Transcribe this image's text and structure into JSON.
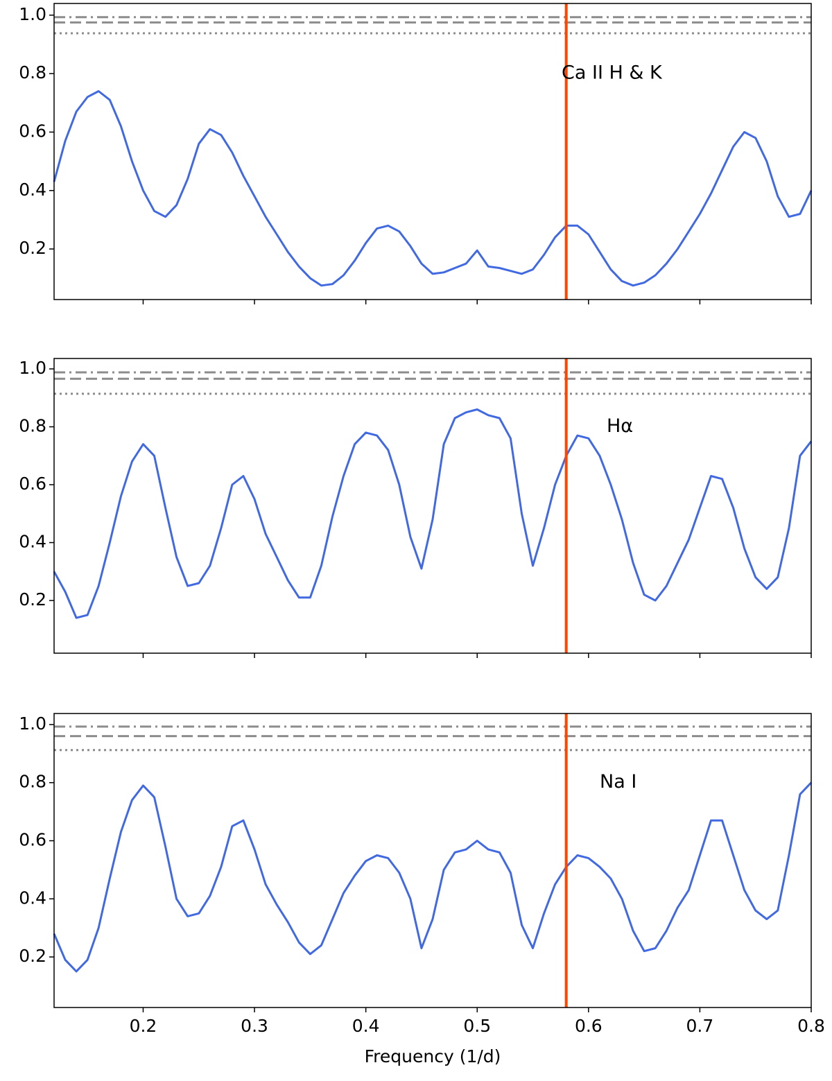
{
  "chart_data": [
    {
      "type": "line",
      "annotation": "Ca II H & K",
      "x": [
        0.12,
        0.13,
        0.14,
        0.15,
        0.16,
        0.17,
        0.18,
        0.19,
        0.2,
        0.21,
        0.22,
        0.23,
        0.24,
        0.25,
        0.26,
        0.27,
        0.28,
        0.29,
        0.3,
        0.31,
        0.32,
        0.33,
        0.34,
        0.35,
        0.36,
        0.37,
        0.38,
        0.39,
        0.4,
        0.41,
        0.42,
        0.43,
        0.44,
        0.45,
        0.46,
        0.47,
        0.48,
        0.49,
        0.5,
        0.51,
        0.52,
        0.53,
        0.54,
        0.55,
        0.56,
        0.57,
        0.58,
        0.59,
        0.6,
        0.61,
        0.62,
        0.63,
        0.64,
        0.65,
        0.66,
        0.67,
        0.68,
        0.69,
        0.7,
        0.71,
        0.72,
        0.73,
        0.74,
        0.75,
        0.76,
        0.77,
        0.78,
        0.79,
        0.8
      ],
      "values": [
        0.43,
        0.57,
        0.67,
        0.72,
        0.74,
        0.71,
        0.62,
        0.5,
        0.4,
        0.33,
        0.31,
        0.35,
        0.44,
        0.56,
        0.61,
        0.59,
        0.53,
        0.45,
        0.38,
        0.31,
        0.25,
        0.19,
        0.14,
        0.1,
        0.075,
        0.08,
        0.11,
        0.16,
        0.22,
        0.27,
        0.28,
        0.26,
        0.21,
        0.15,
        0.115,
        0.12,
        0.135,
        0.15,
        0.195,
        0.14,
        0.135,
        0.125,
        0.115,
        0.13,
        0.18,
        0.24,
        0.28,
        0.28,
        0.25,
        0.19,
        0.13,
        0.09,
        0.075,
        0.085,
        0.11,
        0.15,
        0.2,
        0.26,
        0.32,
        0.39,
        0.47,
        0.55,
        0.6,
        0.58,
        0.5,
        0.38,
        0.31,
        0.32,
        0.4
      ],
      "color": "#4169e1",
      "xlim": [
        0.12,
        0.8
      ],
      "xticks": [
        0.2,
        0.3,
        0.4,
        0.5,
        0.6,
        0.7,
        0.8
      ],
      "xticklabels": false,
      "ylim": [
        0.027,
        1.04
      ],
      "yticks": [
        0.2,
        0.4,
        0.6,
        0.8,
        {
          "value": 1,
          "label": "1.0"
        }
      ],
      "hlines": [
        {
          "value": 0.993,
          "style": "dashdot"
        },
        {
          "value": 0.975,
          "style": "dashed"
        },
        {
          "value": 0.938,
          "style": "dotted"
        }
      ],
      "hline_color": "#8c8c8c",
      "vline": 0.58,
      "vline_color": "#ff4500"
    },
    {
      "type": "line",
      "annotation": "Hα",
      "x": [
        0.12,
        0.13,
        0.14,
        0.15,
        0.16,
        0.17,
        0.18,
        0.19,
        0.2,
        0.21,
        0.22,
        0.23,
        0.24,
        0.25,
        0.26,
        0.27,
        0.28,
        0.29,
        0.3,
        0.31,
        0.32,
        0.33,
        0.34,
        0.35,
        0.36,
        0.37,
        0.38,
        0.39,
        0.4,
        0.41,
        0.42,
        0.43,
        0.44,
        0.45,
        0.46,
        0.47,
        0.48,
        0.49,
        0.5,
        0.51,
        0.52,
        0.53,
        0.54,
        0.55,
        0.56,
        0.57,
        0.58,
        0.59,
        0.6,
        0.61,
        0.62,
        0.63,
        0.64,
        0.65,
        0.66,
        0.67,
        0.68,
        0.69,
        0.7,
        0.71,
        0.72,
        0.73,
        0.74,
        0.75,
        0.76,
        0.77,
        0.78,
        0.79,
        0.8
      ],
      "values": [
        0.3,
        0.23,
        0.14,
        0.15,
        0.25,
        0.4,
        0.56,
        0.68,
        0.74,
        0.7,
        0.52,
        0.35,
        0.25,
        0.26,
        0.32,
        0.45,
        0.6,
        0.63,
        0.55,
        0.43,
        0.35,
        0.27,
        0.21,
        0.21,
        0.32,
        0.49,
        0.63,
        0.74,
        0.78,
        0.77,
        0.72,
        0.6,
        0.42,
        0.31,
        0.48,
        0.74,
        0.83,
        0.85,
        0.86,
        0.84,
        0.83,
        0.76,
        0.5,
        0.32,
        0.45,
        0.6,
        0.7,
        0.77,
        0.76,
        0.7,
        0.6,
        0.48,
        0.33,
        0.22,
        0.2,
        0.25,
        0.33,
        0.41,
        0.52,
        0.63,
        0.62,
        0.52,
        0.38,
        0.28,
        0.24,
        0.28,
        0.45,
        0.7,
        0.75
      ],
      "color": "#4169e1",
      "xlim": [
        0.12,
        0.8
      ],
      "xticks": [
        0.2,
        0.3,
        0.4,
        0.5,
        0.6,
        0.7,
        0.8
      ],
      "xticklabels": false,
      "ylim": [
        0.018,
        1.036
      ],
      "yticks": [
        0.2,
        0.4,
        0.6,
        0.8,
        {
          "value": 1,
          "label": "1.0"
        }
      ],
      "hlines": [
        {
          "value": 0.988,
          "style": "dashdot"
        },
        {
          "value": 0.966,
          "style": "dashed"
        },
        {
          "value": 0.914,
          "style": "dotted"
        }
      ],
      "hline_color": "#8c8c8c",
      "vline": 0.58,
      "vline_color": "#ff4500"
    },
    {
      "type": "line",
      "annotation": "Na I",
      "xlabel": "Frequency (1/d)",
      "x": [
        0.12,
        0.13,
        0.14,
        0.15,
        0.16,
        0.17,
        0.18,
        0.19,
        0.2,
        0.21,
        0.22,
        0.23,
        0.24,
        0.25,
        0.26,
        0.27,
        0.28,
        0.29,
        0.3,
        0.31,
        0.32,
        0.33,
        0.34,
        0.35,
        0.36,
        0.37,
        0.38,
        0.39,
        0.4,
        0.41,
        0.42,
        0.43,
        0.44,
        0.45,
        0.46,
        0.47,
        0.48,
        0.49,
        0.5,
        0.51,
        0.52,
        0.53,
        0.54,
        0.55,
        0.56,
        0.57,
        0.58,
        0.59,
        0.6,
        0.61,
        0.62,
        0.63,
        0.64,
        0.65,
        0.66,
        0.67,
        0.68,
        0.69,
        0.7,
        0.71,
        0.72,
        0.73,
        0.74,
        0.75,
        0.76,
        0.77,
        0.78,
        0.79,
        0.8
      ],
      "values": [
        0.28,
        0.19,
        0.15,
        0.19,
        0.3,
        0.47,
        0.63,
        0.74,
        0.79,
        0.75,
        0.58,
        0.4,
        0.34,
        0.35,
        0.41,
        0.51,
        0.65,
        0.67,
        0.57,
        0.45,
        0.38,
        0.32,
        0.25,
        0.21,
        0.24,
        0.33,
        0.42,
        0.48,
        0.53,
        0.55,
        0.54,
        0.49,
        0.4,
        0.23,
        0.33,
        0.5,
        0.56,
        0.57,
        0.6,
        0.57,
        0.56,
        0.49,
        0.31,
        0.23,
        0.35,
        0.45,
        0.51,
        0.55,
        0.54,
        0.51,
        0.47,
        0.4,
        0.29,
        0.22,
        0.23,
        0.29,
        0.37,
        0.43,
        0.55,
        0.67,
        0.67,
        0.55,
        0.43,
        0.36,
        0.33,
        0.36,
        0.55,
        0.76,
        0.8
      ],
      "color": "#4169e1",
      "xlim": [
        0.12,
        0.8
      ],
      "xticks": [
        0.2,
        0.3,
        0.4,
        0.5,
        0.6,
        0.7,
        0.8
      ],
      "xticklabels": true,
      "ylim": [
        0.026,
        1.038
      ],
      "yticks": [
        0.2,
        0.4,
        0.6,
        0.8,
        {
          "value": 1,
          "label": "1.0"
        }
      ],
      "hlines": [
        {
          "value": 0.993,
          "style": "dashdot"
        },
        {
          "value": 0.96,
          "style": "dashed"
        },
        {
          "value": 0.912,
          "style": "dotted"
        }
      ],
      "hline_color": "#8c8c8c",
      "vline": 0.58,
      "vline_color": "#ff4500"
    }
  ]
}
